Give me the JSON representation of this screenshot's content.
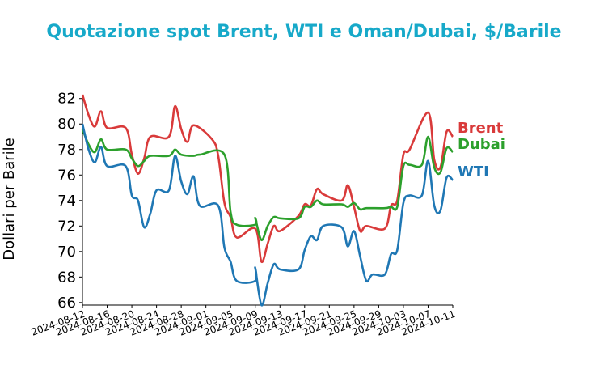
{
  "chart_data": {
    "type": "line",
    "title": "Quotazione spot Brent, WTI e Oman/Dubai, $/Barile",
    "xlabel": "",
    "ylabel": "Dollari per Barile",
    "ylim": [
      65.8,
      82.3
    ],
    "xlim": [
      "2024-08-12",
      "2024-10-11"
    ],
    "yticks": [
      66,
      68,
      70,
      72,
      74,
      76,
      78,
      80,
      82
    ],
    "xticks": [
      "2024-08-12",
      "2024-08-16",
      "2024-08-20",
      "2024-08-24",
      "2024-08-28",
      "2024-09-01",
      "2024-09-05",
      "2024-09-09",
      "2024-09-13",
      "2024-09-17",
      "2024-09-21",
      "2024-09-25",
      "2024-09-29",
      "2024-10-03",
      "2024-10-07",
      "2024-10-11"
    ],
    "grid": false,
    "legend": "end-of-line labels",
    "colors": {
      "Brent": "#d93a3a",
      "Dubai": "#2ca02c",
      "WTI": "#1f77b4",
      "title": "#17a9c9"
    },
    "series": [
      {
        "name": "Brent",
        "points": [
          [
            "2024-08-12",
            82.3
          ],
          [
            "2024-08-13",
            80.7
          ],
          [
            "2024-08-14",
            79.8
          ],
          [
            "2024-08-15",
            81.0
          ],
          [
            "2024-08-16",
            79.7
          ],
          [
            "2024-08-19",
            79.7
          ],
          [
            "2024-08-20",
            77.6
          ],
          [
            "2024-08-21",
            76.1
          ],
          [
            "2024-08-22",
            77.3
          ],
          [
            "2024-08-23",
            79.0
          ],
          [
            "2024-08-26",
            79.0
          ],
          [
            "2024-08-27",
            81.4
          ],
          [
            "2024-08-28",
            79.6
          ],
          [
            "2024-08-29",
            78.6
          ],
          [
            "2024-08-30",
            79.9
          ],
          [
            "2024-09-02",
            78.8
          ],
          [
            "2024-09-03",
            77.5
          ],
          [
            "2024-09-04",
            73.8
          ],
          [
            "2024-09-05",
            72.7
          ],
          [
            "2024-09-06",
            71.1
          ],
          [
            "2024-09-09",
            71.8
          ],
          [
            "2024-09-10",
            69.2
          ],
          [
            "2024-09-11",
            70.6
          ],
          [
            "2024-09-12",
            72.0
          ],
          [
            "2024-09-13",
            71.6
          ],
          [
            "2024-09-16",
            72.8
          ],
          [
            "2024-09-17",
            73.7
          ],
          [
            "2024-09-18",
            73.6
          ],
          [
            "2024-09-19",
            74.9
          ],
          [
            "2024-09-20",
            74.5
          ],
          [
            "2024-09-23",
            74.0
          ],
          [
            "2024-09-24",
            75.2
          ],
          [
            "2024-09-25",
            73.5
          ],
          [
            "2024-09-26",
            71.6
          ],
          [
            "2024-09-27",
            72.0
          ],
          [
            "2024-09-30",
            71.8
          ],
          [
            "2024-10-01",
            73.6
          ],
          [
            "2024-10-02",
            74.0
          ],
          [
            "2024-10-03",
            77.6
          ],
          [
            "2024-10-04",
            78.0
          ],
          [
            "2024-10-07",
            80.9
          ],
          [
            "2024-10-08",
            77.2
          ],
          [
            "2024-10-09",
            76.6
          ],
          [
            "2024-10-10",
            79.4
          ],
          [
            "2024-10-11",
            79.0
          ]
        ]
      },
      {
        "name": "Dubai",
        "points": [
          [
            "2024-08-12",
            79.6
          ],
          [
            "2024-08-13",
            78.4
          ],
          [
            "2024-08-14",
            77.8
          ],
          [
            "2024-08-15",
            78.8
          ],
          [
            "2024-08-16",
            78.0
          ],
          [
            "2024-08-19",
            78.0
          ],
          [
            "2024-08-20",
            77.3
          ],
          [
            "2024-08-21",
            76.7
          ],
          [
            "2024-08-22",
            77.1
          ],
          [
            "2024-08-23",
            77.5
          ],
          [
            "2024-08-26",
            77.5
          ],
          [
            "2024-08-27",
            78.0
          ],
          [
            "2024-08-28",
            77.6
          ],
          [
            "2024-08-30",
            77.5
          ],
          [
            "2024-08-31",
            77.6
          ],
          [
            "2024-09-04",
            77.6
          ],
          [
            "2024-09-05",
            73.1
          ],
          [
            "2024-09-06",
            72.1
          ],
          [
            "2024-09-09",
            72.1
          ],
          [
            "2024-09-09",
            72.6
          ],
          [
            "2024-09-10",
            70.9
          ],
          [
            "2024-09-11",
            72.0
          ],
          [
            "2024-09-12",
            72.7
          ],
          [
            "2024-09-13",
            72.6
          ],
          [
            "2024-09-16",
            72.6
          ],
          [
            "2024-09-17",
            73.5
          ],
          [
            "2024-09-18",
            73.5
          ],
          [
            "2024-09-19",
            74.0
          ],
          [
            "2024-09-20",
            73.7
          ],
          [
            "2024-09-23",
            73.7
          ],
          [
            "2024-09-24",
            73.5
          ],
          [
            "2024-09-25",
            73.8
          ],
          [
            "2024-09-26",
            73.3
          ],
          [
            "2024-09-27",
            73.4
          ],
          [
            "2024-09-30",
            73.4
          ],
          [
            "2024-10-01",
            73.5
          ],
          [
            "2024-10-02",
            73.5
          ],
          [
            "2024-10-03",
            76.7
          ],
          [
            "2024-10-04",
            76.8
          ],
          [
            "2024-10-06",
            76.8
          ],
          [
            "2024-10-07",
            79.0
          ],
          [
            "2024-10-08",
            76.6
          ],
          [
            "2024-10-09",
            76.2
          ],
          [
            "2024-10-10",
            78.1
          ],
          [
            "2024-10-11",
            77.8
          ]
        ]
      },
      {
        "name": "WTI",
        "points": [
          [
            "2024-08-12",
            80.0
          ],
          [
            "2024-08-13",
            78.0
          ],
          [
            "2024-08-14",
            77.0
          ],
          [
            "2024-08-15",
            78.2
          ],
          [
            "2024-08-16",
            76.7
          ],
          [
            "2024-08-19",
            76.7
          ],
          [
            "2024-08-20",
            74.4
          ],
          [
            "2024-08-21",
            74.0
          ],
          [
            "2024-08-22",
            71.9
          ],
          [
            "2024-08-23",
            73.0
          ],
          [
            "2024-08-24",
            74.8
          ],
          [
            "2024-08-26",
            74.8
          ],
          [
            "2024-08-27",
            77.5
          ],
          [
            "2024-08-28",
            75.5
          ],
          [
            "2024-08-29",
            74.5
          ],
          [
            "2024-08-30",
            75.9
          ],
          [
            "2024-08-31",
            73.6
          ],
          [
            "2024-09-03",
            73.6
          ],
          [
            "2024-09-04",
            70.3
          ],
          [
            "2024-09-05",
            69.2
          ],
          [
            "2024-09-06",
            67.7
          ],
          [
            "2024-09-09",
            67.7
          ],
          [
            "2024-09-09",
            68.7
          ],
          [
            "2024-09-10",
            65.8
          ],
          [
            "2024-09-11",
            67.5
          ],
          [
            "2024-09-12",
            69.0
          ],
          [
            "2024-09-13",
            68.6
          ],
          [
            "2024-09-16",
            68.6
          ],
          [
            "2024-09-17",
            70.1
          ],
          [
            "2024-09-18",
            71.2
          ],
          [
            "2024-09-19",
            70.9
          ],
          [
            "2024-09-20",
            72.0
          ],
          [
            "2024-09-23",
            71.9
          ],
          [
            "2024-09-24",
            70.4
          ],
          [
            "2024-09-25",
            71.6
          ],
          [
            "2024-09-26",
            69.6
          ],
          [
            "2024-09-27",
            67.7
          ],
          [
            "2024-09-28",
            68.2
          ],
          [
            "2024-09-30",
            68.2
          ],
          [
            "2024-10-01",
            69.8
          ],
          [
            "2024-10-02",
            70.1
          ],
          [
            "2024-10-03",
            73.8
          ],
          [
            "2024-10-04",
            74.4
          ],
          [
            "2024-10-06",
            74.4
          ],
          [
            "2024-10-07",
            77.1
          ],
          [
            "2024-10-08",
            73.6
          ],
          [
            "2024-10-09",
            73.2
          ],
          [
            "2024-10-10",
            75.8
          ],
          [
            "2024-10-11",
            75.6
          ]
        ]
      }
    ]
  }
}
